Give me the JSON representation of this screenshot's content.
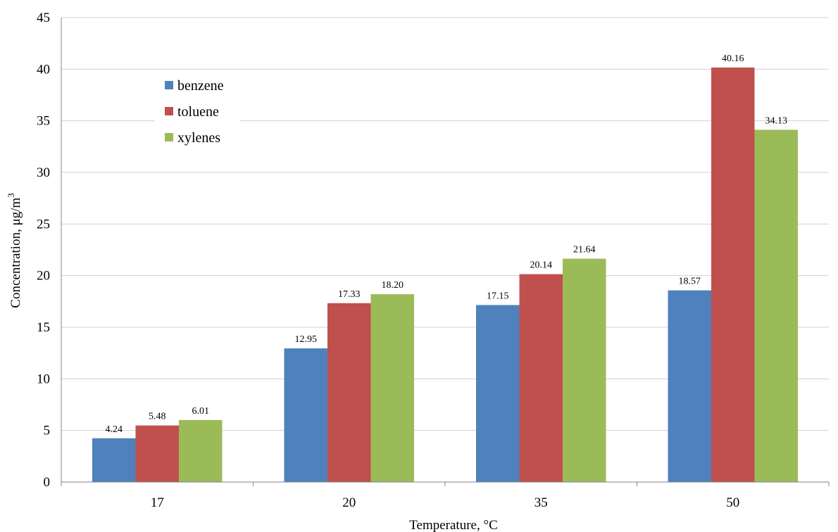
{
  "chart_data": {
    "type": "bar",
    "categories": [
      "17",
      "20",
      "35",
      "50"
    ],
    "series": [
      {
        "name": "benzene",
        "values": [
          4.24,
          12.95,
          17.15,
          18.57
        ],
        "labels": [
          "4.24",
          "12.95",
          "17.15",
          "18.57"
        ],
        "color": "#4f81bd"
      },
      {
        "name": "toluene",
        "values": [
          5.48,
          17.33,
          20.14,
          40.16
        ],
        "labels": [
          "5.48",
          "17.33",
          "20.14",
          "40.16"
        ],
        "color": "#c0504d"
      },
      {
        "name": "xylenes",
        "values": [
          6.01,
          18.2,
          21.64,
          34.13
        ],
        "labels": [
          "6.01",
          "18.20",
          "21.64",
          "34.13"
        ],
        "color": "#9bbb59"
      }
    ],
    "title": "",
    "xlabel": "Temperature, °C",
    "ylabel": "Concentration, μg/m",
    "ylabel_superscript": "3",
    "ylim": [
      0,
      45
    ],
    "yticks": [
      "0",
      "5",
      "10",
      "15",
      "20",
      "25",
      "30",
      "35",
      "40",
      "45"
    ],
    "grid": true,
    "legend_position": "top-left"
  }
}
